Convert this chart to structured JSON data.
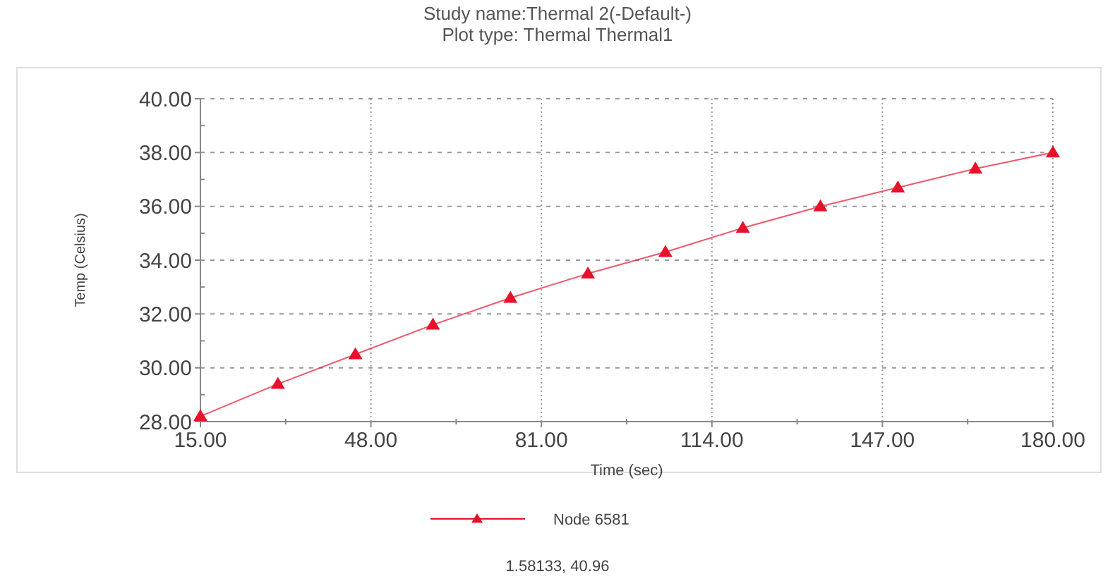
{
  "chart_data": {
    "type": "line",
    "title": "Study name:Thermal 2(-Default-)",
    "subtitle": "Plot type: Thermal Thermal1",
    "xlabel": "Time (sec)",
    "ylabel": "Temp (Celsius)",
    "x": [
      15,
      30,
      45,
      60,
      75,
      90,
      105,
      120,
      135,
      150,
      165,
      180
    ],
    "series": [
      {
        "name": "Node 6581",
        "color": "#e8102a",
        "values": [
          28.2,
          29.4,
          30.5,
          31.6,
          32.6,
          33.5,
          34.3,
          35.2,
          36.0,
          36.7,
          37.4,
          38.0
        ]
      }
    ],
    "xlim": [
      15,
      180
    ],
    "xticks": [
      {
        "value": 15,
        "label": "15.00"
      },
      {
        "value": 48,
        "label": "48.00"
      },
      {
        "value": 81,
        "label": "81.00"
      },
      {
        "value": 114,
        "label": "114.00"
      },
      {
        "value": 147,
        "label": "147.00"
      },
      {
        "value": 180,
        "label": "180.00"
      }
    ],
    "ylim": [
      28,
      40
    ],
    "yticks": [
      {
        "value": 28,
        "label": "28.00"
      },
      {
        "value": 30,
        "label": "30.00"
      },
      {
        "value": 32,
        "label": "32.00"
      },
      {
        "value": 34,
        "label": "34.00"
      },
      {
        "value": 36,
        "label": "36.00"
      },
      {
        "value": 38,
        "label": "38.00"
      },
      {
        "value": 40,
        "label": "40.00"
      }
    ],
    "grid": true,
    "legend": "bottom",
    "marker": "triangle",
    "line_style": "solid",
    "annotations": [
      "1.58133, 40.96"
    ]
  }
}
